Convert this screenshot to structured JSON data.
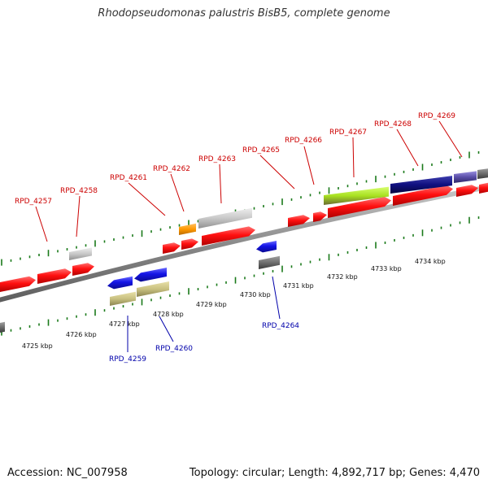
{
  "title": "Rhodopseudomonas palustris BisB5, complete genome",
  "footer": {
    "accession": "Accession: NC_007958",
    "summary": "Topology: circular; Length: 4,892,717 bp; Genes: 4,470"
  },
  "colors": {
    "forward_label": "#cc0000",
    "reverse_label": "#0000aa",
    "gene_red": "#ff1a1a",
    "gene_blue": "#1414e6",
    "gene_gray": "#c8c8c8",
    "gene_orange": "#ff9900",
    "gene_lime": "#a8e020",
    "gene_navy": "#101080",
    "gene_slate": "#5a4fa8",
    "gene_khaki": "#c8c080",
    "gene_darkgray": "#6e6e6e",
    "tick_green": "#1a7a1a",
    "backbone": "#999999"
  },
  "scale_labels": [
    "4725 kbp",
    "4726 kbp",
    "4727 kbp",
    "4728 kbp",
    "4729 kbp",
    "4730 kbp",
    "4731 kbp",
    "4732 kbp",
    "4733 kbp",
    "4734 kbp"
  ],
  "forward_gene_labels": [
    "RPD_4257",
    "RPD_4258",
    "RPD_4261",
    "RPD_4262",
    "RPD_4263",
    "RPD_4265",
    "RPD_4266",
    "RPD_4267",
    "RPD_4268",
    "RPD_4269"
  ],
  "reverse_gene_labels": [
    "RPD_4259",
    "RPD_4260",
    "RPD_4264"
  ]
}
